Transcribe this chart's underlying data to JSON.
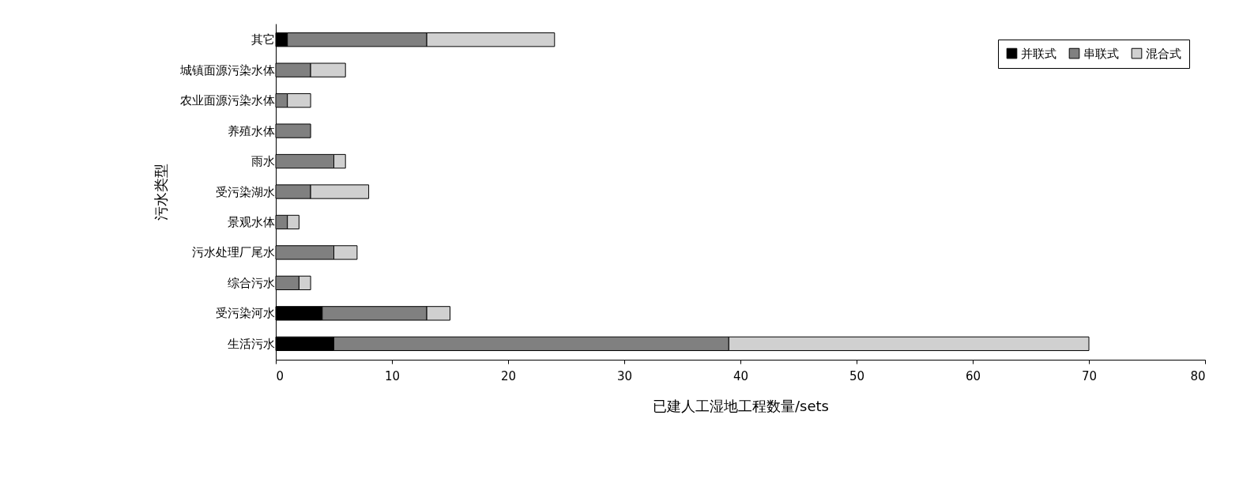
{
  "chart_data": {
    "type": "bar",
    "orientation": "horizontal",
    "stacked": true,
    "xlabel": "已建人工湿地工程数量/sets",
    "ylabel": "污水类型",
    "categories": [
      "其它",
      "城镇面源污染水体",
      "农业面源污染水体",
      "养殖水体",
      "雨水",
      "受污染湖水",
      "景观水体",
      "污水处理厂尾水",
      "综合污水",
      "受污染河水",
      "生活污水"
    ],
    "series": [
      {
        "name": "并联式",
        "color": "#000000",
        "values": [
          1,
          0,
          0,
          0,
          0,
          0,
          0,
          0,
          0,
          4,
          5
        ]
      },
      {
        "name": "串联式",
        "color": "#808080",
        "values": [
          12,
          3,
          1,
          3,
          5,
          3,
          1,
          5,
          2,
          9,
          34
        ]
      },
      {
        "name": "混合式",
        "color": "#d0d0d0",
        "values": [
          11,
          3,
          2,
          0,
          1,
          5,
          1,
          2,
          1,
          2,
          31
        ]
      }
    ],
    "xlim": [
      0,
      80
    ],
    "xticks": [
      0,
      10,
      20,
      30,
      40,
      50,
      60,
      70,
      80
    ],
    "grid": false,
    "legend": "top right"
  }
}
